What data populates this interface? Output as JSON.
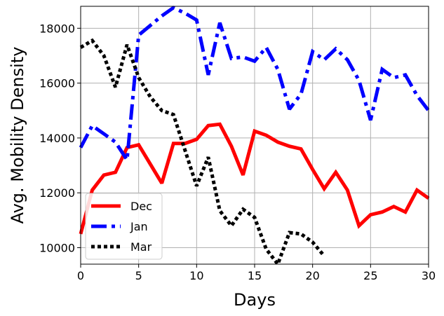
{
  "chart_data": {
    "type": "line",
    "xlabel": "Days",
    "ylabel": "Avg. Mobility Density",
    "xlim": [
      0,
      30
    ],
    "ylim": [
      9400,
      18800
    ],
    "xticks": [
      0,
      5,
      10,
      15,
      20,
      25,
      30
    ],
    "yticks": [
      10000,
      12000,
      14000,
      16000,
      18000
    ],
    "grid": true,
    "legend_position": "lower-left",
    "series": [
      {
        "name": "Dec",
        "color": "#ff0000",
        "style": "solid",
        "x": [
          0,
          1,
          2,
          3,
          4,
          5,
          6,
          7,
          8,
          9,
          10,
          11,
          12,
          13,
          14,
          15,
          16,
          17,
          18,
          19,
          20,
          21,
          22,
          23,
          24,
          25,
          26,
          27,
          28,
          29,
          30
        ],
        "y": [
          10500,
          12100,
          12650,
          12750,
          13650,
          13750,
          13050,
          12350,
          13800,
          13800,
          13950,
          14450,
          14500,
          13700,
          12650,
          14250,
          14100,
          13850,
          13700,
          13600,
          12850,
          12150,
          12750,
          12100,
          10800,
          11200,
          11300,
          11500,
          11300,
          12100,
          11800
        ]
      },
      {
        "name": "Jan",
        "color": "#0000ff",
        "style": "dashdot",
        "x": [
          0,
          1,
          2,
          3,
          4,
          5,
          6,
          7,
          8,
          9,
          10,
          11,
          12,
          13,
          14,
          15,
          16,
          17,
          18,
          19,
          20,
          21,
          22,
          23,
          24,
          25,
          26,
          27,
          28,
          29,
          30
        ],
        "y": [
          13650,
          14450,
          14150,
          13850,
          13200,
          17750,
          18100,
          18450,
          18750,
          18550,
          18300,
          16300,
          18200,
          16900,
          16950,
          16800,
          17300,
          16500,
          15050,
          15600,
          17150,
          16850,
          17250,
          16850,
          16100,
          14650,
          16500,
          16200,
          16300,
          15550,
          15000
        ]
      },
      {
        "name": "Mar",
        "color": "#000000",
        "style": "dotted",
        "x": [
          0,
          1,
          2,
          3,
          4,
          5,
          6,
          7,
          8,
          9,
          10,
          11,
          12,
          13,
          14,
          15,
          16,
          17,
          18,
          19,
          20,
          21
        ],
        "y": [
          17300,
          17550,
          17000,
          15850,
          17400,
          16200,
          15500,
          15000,
          14850,
          13550,
          12250,
          13300,
          11350,
          10800,
          11400,
          11100,
          9950,
          9400,
          10550,
          10500,
          10200,
          9700
        ]
      }
    ]
  }
}
